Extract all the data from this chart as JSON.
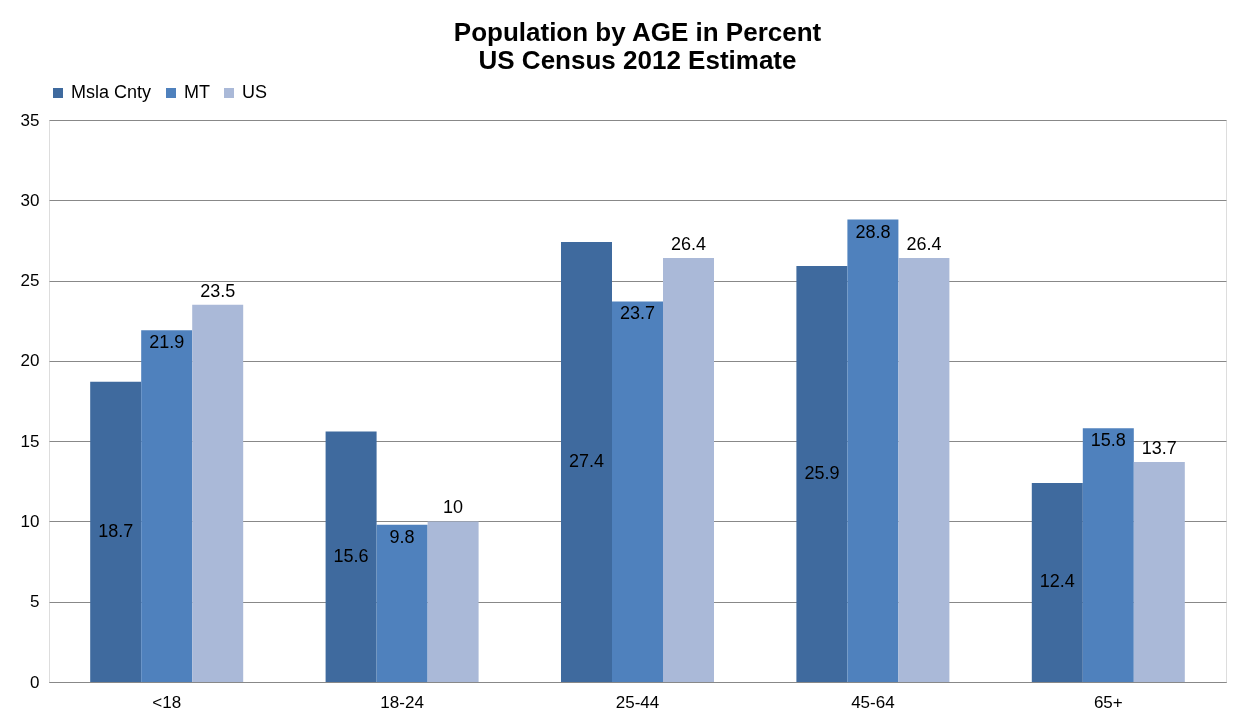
{
  "chart_data": {
    "type": "bar",
    "title": "Population by AGE in Percent\nUS Census 2012 Estimate",
    "categories": [
      "<18",
      "18-24",
      "25-44",
      "45-64",
      "65+"
    ],
    "series": [
      {
        "name": "Msla Cnty",
        "color": "#3f6a9e",
        "values": [
          18.7,
          15.6,
          27.4,
          25.9,
          12.4
        ]
      },
      {
        "name": "MT",
        "color": "#4f81bd",
        "values": [
          21.9,
          9.8,
          23.7,
          28.8,
          15.8
        ]
      },
      {
        "name": "US",
        "color": "#aab9d8",
        "values": [
          23.5,
          10,
          26.4,
          26.4,
          13.7
        ]
      }
    ],
    "ylim": [
      0,
      35
    ],
    "yticks": [
      0,
      5,
      10,
      15,
      20,
      25,
      30,
      35
    ],
    "grid": "y",
    "legend": "top",
    "data_labels": true
  }
}
